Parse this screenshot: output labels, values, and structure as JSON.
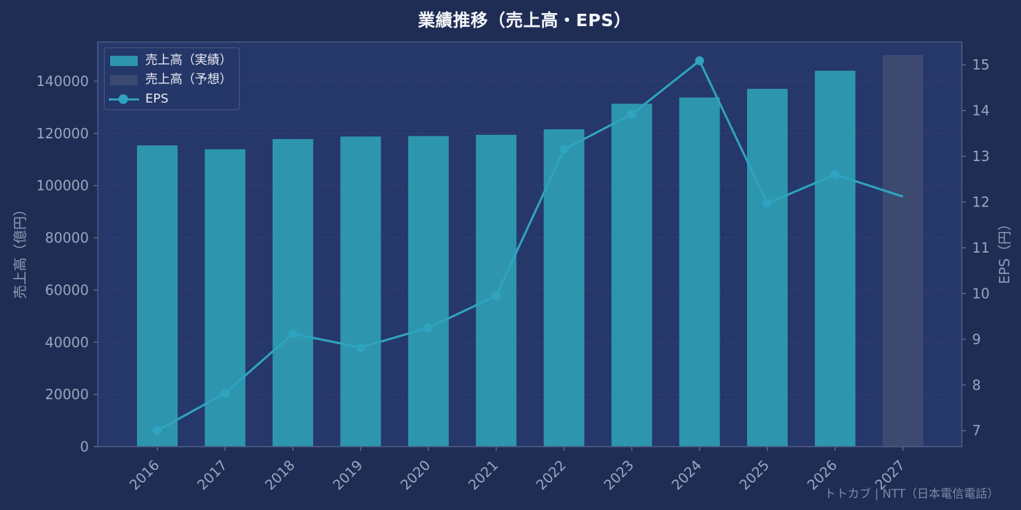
{
  "title": "業績推移（売上高・EPS）",
  "watermark": "トトカブ | NTT（日本電信電話）",
  "colors": {
    "background": "#1f2d55",
    "plot_background": "#263769",
    "actual_bar": "#2e95ae",
    "forecast_bar": "#3c4a70",
    "eps_line": "#2fa3bf",
    "tick_text": "#9aa6bf"
  },
  "legend": {
    "items": [
      {
        "label": "売上高（実績）",
        "kind": "bar-actual"
      },
      {
        "label": "売上高（予想）",
        "kind": "bar-forecast"
      },
      {
        "label": "EPS",
        "kind": "line-marker"
      }
    ]
  },
  "chart_data": {
    "type": "bar",
    "title": "業績推移（売上高・EPS）",
    "categories": [
      "2016",
      "2017",
      "2018",
      "2019",
      "2020",
      "2021",
      "2022",
      "2023",
      "2024",
      "2025",
      "2026",
      "2027"
    ],
    "series": [
      {
        "name": "売上高（実績）",
        "type": "bar",
        "axis": "left",
        "values": [
          115410,
          113910,
          117820,
          118790,
          118990,
          119440,
          121560,
          131360,
          133750,
          137050,
          144000,
          null
        ]
      },
      {
        "name": "売上高（予想）",
        "type": "bar",
        "axis": "left",
        "values": [
          null,
          null,
          null,
          null,
          null,
          null,
          null,
          null,
          null,
          null,
          null,
          150000
        ]
      },
      {
        "name": "EPS",
        "type": "line",
        "axis": "right",
        "values": [
          7.0,
          7.82,
          9.12,
          8.82,
          9.25,
          9.95,
          13.15,
          13.92,
          15.09,
          11.97,
          12.6,
          12.12
        ]
      }
    ],
    "ylabel": "売上高（億円）",
    "y2label": "EPS（円）",
    "xlabel": "",
    "ylim": [
      0,
      155000
    ],
    "yticks": [
      0,
      20000,
      40000,
      60000,
      80000,
      100000,
      120000,
      140000
    ],
    "y2lim": [
      6.65,
      15.5
    ],
    "y2ticks": [
      7,
      8,
      9,
      10,
      11,
      12,
      13,
      14,
      15
    ],
    "grid": true,
    "legend_position": "top-left"
  }
}
